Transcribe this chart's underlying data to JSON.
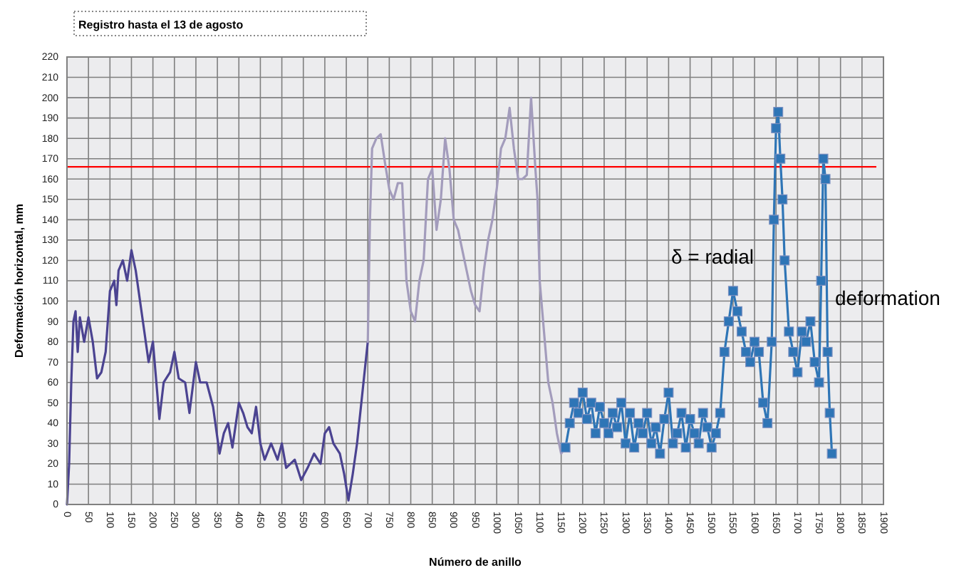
{
  "chart_data": {
    "type": "line",
    "title": "Registro hasta el  13 de  agosto",
    "xlabel": "Número de anillo",
    "ylabel": "Deformación horizontal,  mm",
    "xlim": [
      0,
      1900
    ],
    "xticks": [
      0,
      50,
      100,
      150,
      200,
      250,
      300,
      350,
      400,
      450,
      500,
      550,
      600,
      650,
      700,
      750,
      800,
      850,
      900,
      950,
      1000,
      1050,
      1100,
      1150,
      1200,
      1250,
      1300,
      1350,
      1400,
      1450,
      1500,
      1550,
      1600,
      1650,
      1700,
      1750,
      1800,
      1850,
      1900
    ],
    "ylim": [
      0,
      220
    ],
    "yticks": [
      0,
      10,
      20,
      30,
      40,
      50,
      60,
      70,
      80,
      90,
      100,
      110,
      120,
      130,
      140,
      150,
      160,
      170,
      180,
      190,
      200,
      210,
      220
    ],
    "grid": true,
    "line_style": "solid",
    "ref_lines": [
      {
        "axis": "y",
        "value": 166,
        "color": "#ff0000"
      }
    ],
    "annotations": [
      "δ = radial",
      "deformation"
    ],
    "series": [
      {
        "color": "#4b4391",
        "marker": "none",
        "x": [
          0,
          5,
          10,
          15,
          20,
          25,
          30,
          40,
          50,
          60,
          70,
          80,
          90,
          100,
          110,
          115,
          120,
          130,
          140,
          150,
          160,
          170,
          180,
          190,
          200,
          210,
          215,
          225,
          240,
          250,
          260,
          275,
          285,
          300,
          310,
          325,
          340,
          355,
          365,
          375,
          385,
          400,
          410,
          420,
          430,
          440,
          450,
          460,
          475,
          490,
          500,
          510,
          520,
          530,
          545,
          560,
          575,
          590,
          600,
          610,
          620,
          635,
          645,
          655,
          665,
          675,
          690,
          700
        ],
        "values": [
          0,
          20,
          60,
          90,
          95,
          75,
          92,
          80,
          92,
          80,
          62,
          65,
          75,
          105,
          110,
          98,
          115,
          120,
          110,
          125,
          115,
          100,
          85,
          70,
          80,
          55,
          42,
          60,
          65,
          75,
          62,
          60,
          45,
          70,
          60,
          60,
          48,
          25,
          35,
          40,
          28,
          50,
          45,
          38,
          35,
          48,
          30,
          22,
          30,
          22,
          30,
          18,
          20,
          22,
          12,
          18,
          25,
          20,
          35,
          38,
          30,
          25,
          15,
          2,
          15,
          30,
          60,
          80
        ]
      },
      {
        "color": "#a39cbc",
        "marker": "none",
        "x": [
          700,
          705,
          710,
          720,
          730,
          740,
          750,
          760,
          770,
          780,
          790,
          800,
          810,
          820,
          830,
          840,
          850,
          860,
          870,
          880,
          890,
          900,
          910,
          920,
          930,
          940,
          950,
          960,
          970,
          980,
          990,
          1000,
          1010,
          1020,
          1030,
          1040,
          1050,
          1060,
          1070,
          1080,
          1090,
          1095,
          1100,
          1110,
          1120,
          1130,
          1140,
          1150,
          1160
        ],
        "values": [
          80,
          140,
          175,
          180,
          182,
          168,
          155,
          150,
          158,
          158,
          110,
          95,
          90,
          110,
          120,
          160,
          165,
          135,
          150,
          180,
          165,
          140,
          135,
          125,
          115,
          105,
          98,
          95,
          115,
          130,
          140,
          155,
          175,
          180,
          195,
          175,
          160,
          160,
          162,
          200,
          165,
          150,
          110,
          85,
          60,
          50,
          35,
          25,
          28
        ]
      },
      {
        "color": "#2e75b6",
        "marker": "square",
        "x": [
          1160,
          1170,
          1180,
          1190,
          1200,
          1210,
          1220,
          1230,
          1240,
          1250,
          1260,
          1270,
          1280,
          1290,
          1300,
          1310,
          1320,
          1330,
          1340,
          1350,
          1360,
          1370,
          1380,
          1390,
          1400,
          1410,
          1420,
          1430,
          1440,
          1450,
          1460,
          1470,
          1480,
          1490,
          1500,
          1510,
          1520,
          1530,
          1540,
          1550,
          1560,
          1570,
          1580,
          1590,
          1600,
          1610,
          1620,
          1630,
          1640,
          1645,
          1650,
          1655,
          1660,
          1665,
          1670,
          1680,
          1690,
          1700,
          1710,
          1720,
          1730,
          1740,
          1750,
          1755,
          1760,
          1765,
          1770,
          1775,
          1780
        ],
        "values": [
          28,
          40,
          50,
          45,
          55,
          42,
          50,
          35,
          48,
          40,
          35,
          45,
          38,
          50,
          30,
          45,
          28,
          40,
          35,
          45,
          30,
          38,
          25,
          42,
          55,
          30,
          35,
          45,
          28,
          42,
          35,
          30,
          45,
          38,
          28,
          35,
          45,
          75,
          90,
          105,
          95,
          85,
          75,
          70,
          80,
          75,
          50,
          40,
          80,
          140,
          185,
          193,
          170,
          150,
          120,
          85,
          75,
          65,
          85,
          80,
          90,
          70,
          60,
          110,
          170,
          160,
          75,
          45,
          25
        ]
      }
    ]
  }
}
